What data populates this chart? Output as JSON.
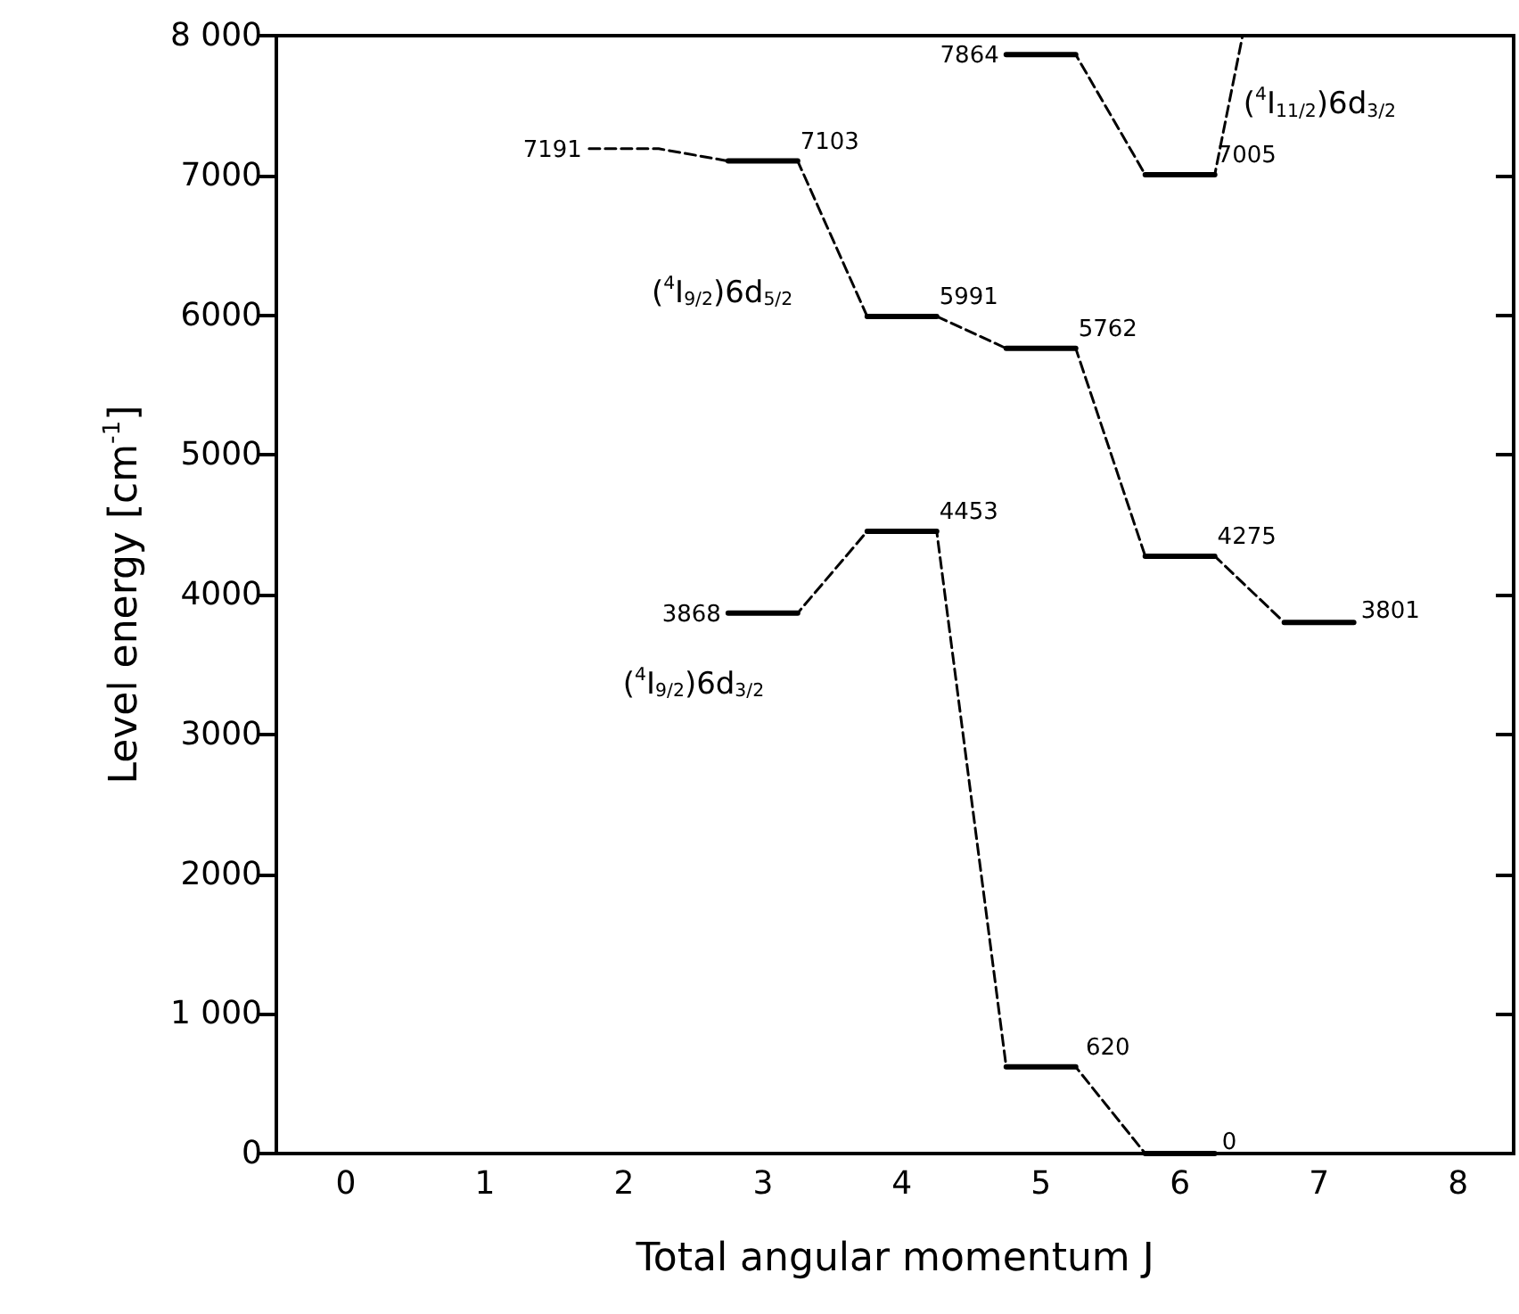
{
  "chart_data": {
    "type": "line",
    "xlabel": "Total angular momentum J",
    "ylabel": "Level energy [cm$^{-1}$]",
    "xlim": [
      -0.5,
      8.4
    ],
    "xticks": [
      0,
      1,
      2,
      3,
      4,
      5,
      6,
      7,
      8
    ],
    "ylim": [
      0,
      8000
    ],
    "yticks": [
      0,
      {
        "value": 1000,
        "label": "1 000"
      },
      2000,
      3000,
      4000,
      5000,
      6000,
      7000,
      {
        "value": 8000,
        "label": "8 000"
      }
    ],
    "grid": false,
    "marker": "none",
    "series": [
      {
        "name": "($^{4}$I$_{9/2}$)6d$_{3/2}$",
        "color": "#000000",
        "line_style": "dashed",
        "x": [
          2.75,
          3.25,
          3.75,
          4.25,
          4.75,
          5.25,
          5.75,
          6.25
        ],
        "values": [
          3868,
          3868,
          4453,
          4453,
          620,
          620,
          0,
          0
        ],
        "value_labels": [
          "3868",
          null,
          null,
          "4453",
          null,
          "620",
          null,
          "0"
        ]
      },
      {
        "color": "#000000",
        "line_style": "solid",
        "x": [
          2.75,
          3.25,
          3.5,
          3.75,
          4.25,
          4.5,
          4.75,
          5.25,
          5.5,
          5.75,
          6.25
        ],
        "values": [
          3868,
          3868,
          null,
          4453,
          4453,
          null,
          620,
          620,
          null,
          0,
          0
        ]
      },
      {
        "name": "($^{4}$I$_{9/2}$)6d$_{5/2}$",
        "color": "#000000",
        "line_style": "dashed",
        "x": [
          1.75,
          2.25,
          2.75,
          3.25,
          3.75,
          4.25,
          4.75,
          5.25,
          5.75,
          6.25,
          6.75,
          7.25
        ],
        "values": [
          7191,
          7191,
          7103,
          7103,
          5991,
          5991,
          5762,
          5762,
          4275,
          4275,
          3801,
          3801
        ],
        "value_labels": [
          "7191",
          null,
          null,
          "7103",
          null,
          "5991",
          null,
          "5762",
          null,
          "4275",
          null,
          "3801"
        ]
      },
      {
        "color": "#000000",
        "line_style": "solid",
        "x": [
          2.75,
          3.25,
          3.5,
          3.75,
          4.25,
          4.5,
          4.75,
          5.25,
          5.5,
          5.75,
          6.25,
          6.5,
          6.75,
          7.25
        ],
        "values": [
          7103,
          7103,
          null,
          5991,
          5991,
          null,
          5762,
          5762,
          null,
          4275,
          4275,
          null,
          3801,
          3801
        ]
      },
      {
        "name": "($^{4}$I$_{11/2}$)6d$_{3/2}$",
        "color": "#000000",
        "line_style": "dashed",
        "x": [
          4.75,
          5.25,
          5.75,
          6.25,
          6.45
        ],
        "values": [
          7864,
          7864,
          7005,
          7005,
          8000
        ],
        "value_labels": [
          "7864",
          null,
          null,
          "7005",
          null
        ]
      },
      {
        "color": "#000000",
        "line_style": "solid",
        "x": [
          4.75,
          5.25,
          5.5,
          5.75,
          6.25
        ],
        "values": [
          7864,
          7864,
          null,
          7005,
          7005
        ]
      }
    ]
  }
}
